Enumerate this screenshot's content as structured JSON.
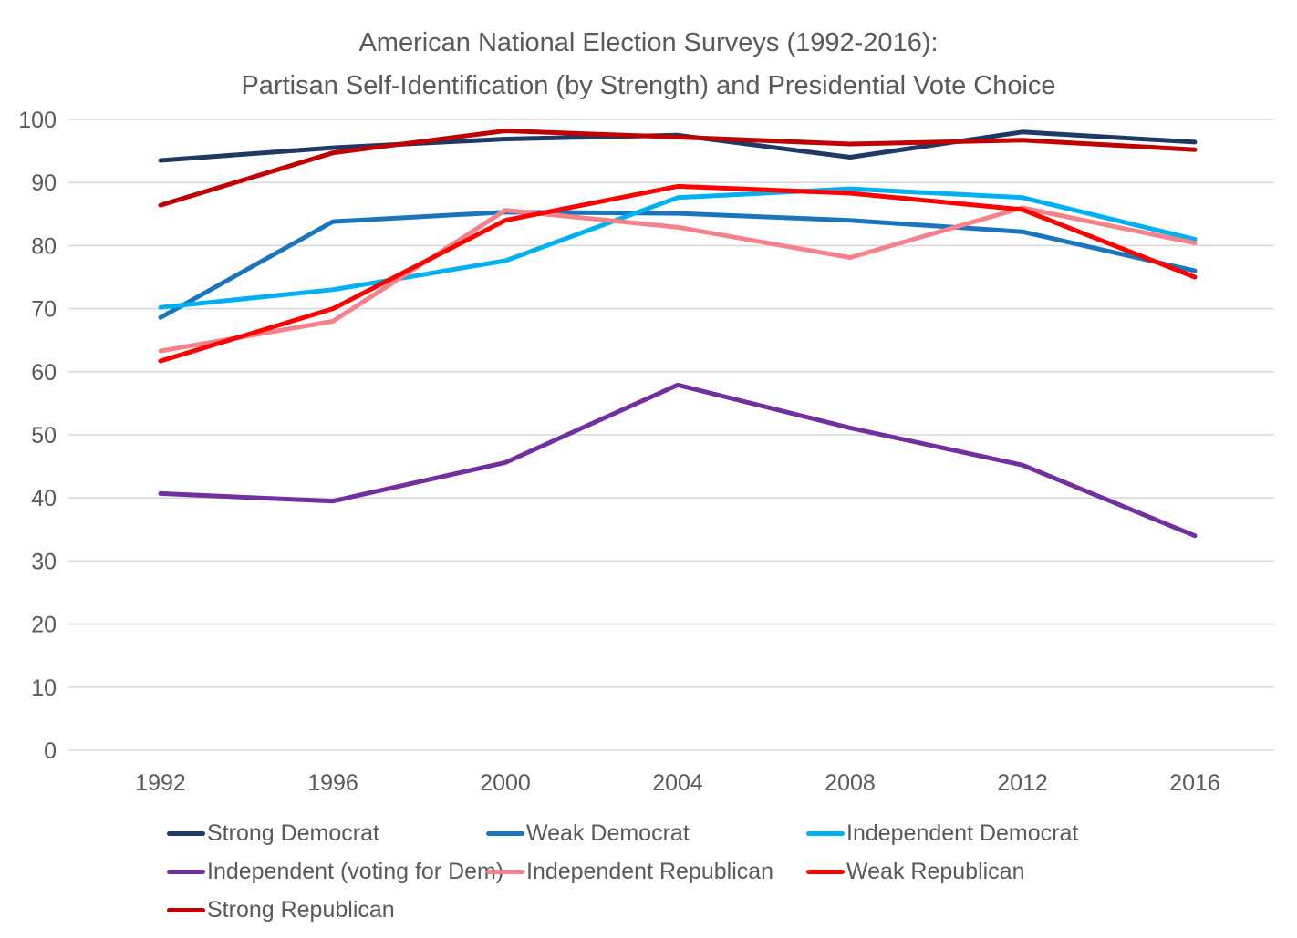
{
  "title": {
    "line1": "American National Election Surveys (1992-2016):",
    "line2": "Partisan Self-Identification (by Strength) and Presidential Vote Choice"
  },
  "chart_data": {
    "type": "line",
    "x": [
      1992,
      1996,
      2000,
      2004,
      2008,
      2012,
      2016
    ],
    "xlabel": "",
    "ylabel": "",
    "ylim": [
      0,
      100
    ],
    "ytick_step": 10,
    "yticks": [
      0,
      10,
      20,
      30,
      40,
      50,
      60,
      70,
      80,
      90,
      100
    ],
    "grid": true,
    "legend_position": "bottom",
    "series": [
      {
        "name": "Strong Democrat",
        "color": "#1F3864",
        "values": [
          93.5,
          95.5,
          96.9,
          97.5,
          94.0,
          98.0,
          96.4
        ]
      },
      {
        "name": "Weak Democrat",
        "color": "#1B75BC",
        "values": [
          68.6,
          83.8,
          85.3,
          85.1,
          84.0,
          82.2,
          76.0
        ]
      },
      {
        "name": "Independent Democrat",
        "color": "#00B0F0",
        "values": [
          70.2,
          73.0,
          77.6,
          87.6,
          89.0,
          87.6,
          81.0
        ]
      },
      {
        "name": "Independent (voting for Dem)",
        "color": "#7030A0",
        "values": [
          40.7,
          39.5,
          45.6,
          57.9,
          51.1,
          45.2,
          34.0
        ]
      },
      {
        "name": "Independent Republican",
        "color": "#F4828B",
        "values": [
          63.3,
          68.0,
          85.6,
          82.9,
          78.1,
          86.0,
          80.4
        ]
      },
      {
        "name": "Weak Republican",
        "color": "#FF0000",
        "values": [
          61.7,
          70.0,
          84.0,
          89.4,
          88.3,
          85.7,
          75.0
        ]
      },
      {
        "name": "Strong Republican",
        "color": "#C00000",
        "values": [
          86.4,
          94.7,
          98.2,
          97.2,
          96.1,
          96.7,
          95.2
        ]
      }
    ]
  },
  "legend": {
    "rows": [
      [
        "Strong Democrat",
        "Weak Democrat",
        "Independent Democrat"
      ],
      [
        "Independent (voting for Dem)",
        "Independent Republican",
        "Weak Republican"
      ],
      [
        "Strong Republican"
      ]
    ]
  },
  "colors": {
    "text": "#595959",
    "gridline": "#D9D9D9",
    "background": "#FFFFFF"
  }
}
